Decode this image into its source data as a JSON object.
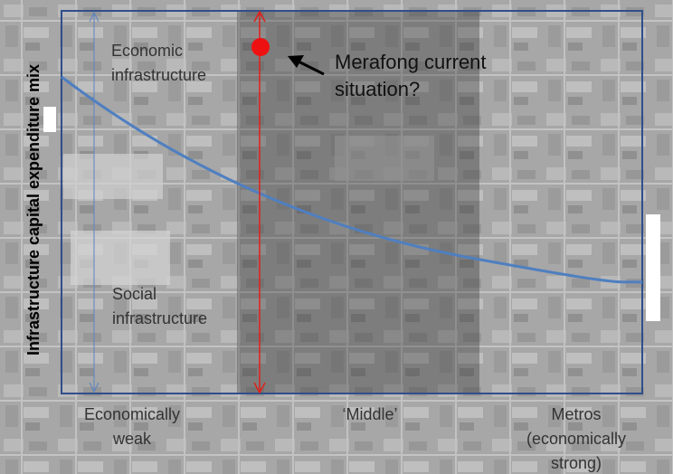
{
  "y_axis_label": "Infrastructure capital expenditure mix",
  "regions": {
    "economic": [
      "Economic",
      "infrastructure"
    ],
    "social": [
      "Social",
      "infrastructure"
    ]
  },
  "annotation": [
    "Merafong current",
    "situation?"
  ],
  "x_labels": [
    [
      "Economically",
      "weak"
    ],
    [
      "‘Middle’"
    ],
    [
      "Metros",
      "(economically",
      "strong)"
    ]
  ]
}
